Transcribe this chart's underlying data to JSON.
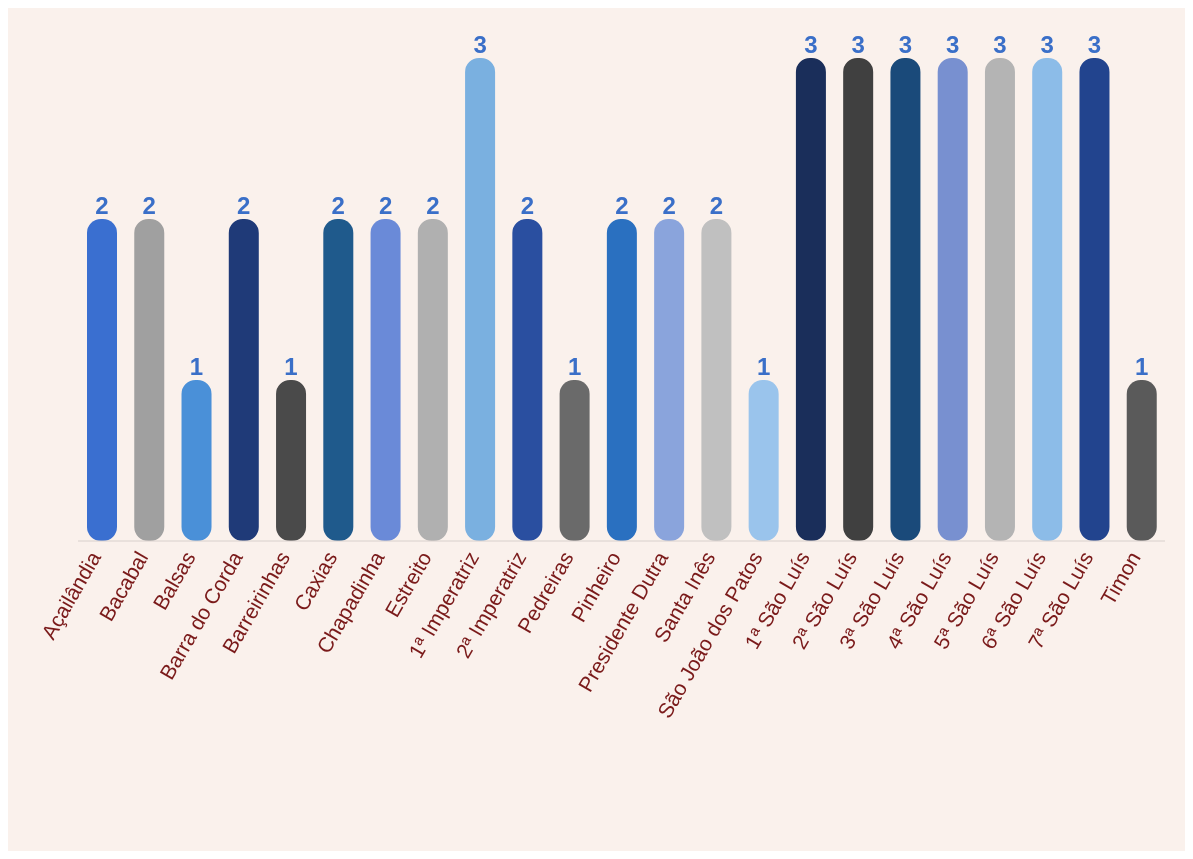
{
  "chart_data": {
    "type": "bar",
    "categories": [
      "Açailândia",
      "Bacabal",
      "Balsas",
      "Barra do Corda",
      "Barreirinhas",
      "Caxias",
      "Chapadinha",
      "Estreito",
      "1ª Imperatriz",
      "2ª Imperatriz",
      "Pedreiras",
      "Pinheiro",
      "Presidente Dutra",
      "Santa Inês",
      "São João dos Patos",
      "1ª São Luís",
      "2ª São Luís",
      "3ª São Luís",
      "4ª São Luís",
      "5ª São Luís",
      "6ª São Luís",
      "7ª São Luís",
      "Timon"
    ],
    "values": [
      2,
      2,
      1,
      2,
      1,
      2,
      2,
      2,
      3,
      2,
      1,
      2,
      2,
      2,
      1,
      3,
      3,
      3,
      3,
      3,
      3,
      3,
      1
    ],
    "colors": [
      "#3a6fd0",
      "#a0a0a0",
      "#4a90d8",
      "#1f3a78",
      "#4a4a4a",
      "#1f5a8c",
      "#6a8ad8",
      "#b0b0b0",
      "#7ab0e0",
      "#2a4fa0",
      "#6a6a6a",
      "#2a70c0",
      "#8aa4dc",
      "#c0c0c0",
      "#9ac4ec",
      "#1a2e5a",
      "#404040",
      "#1a4a7a",
      "#7890d0",
      "#b4b4b4",
      "#8cbce8",
      "#22448e",
      "#5a5a5a"
    ],
    "data_labels": true,
    "grid": false,
    "legend": false
  }
}
